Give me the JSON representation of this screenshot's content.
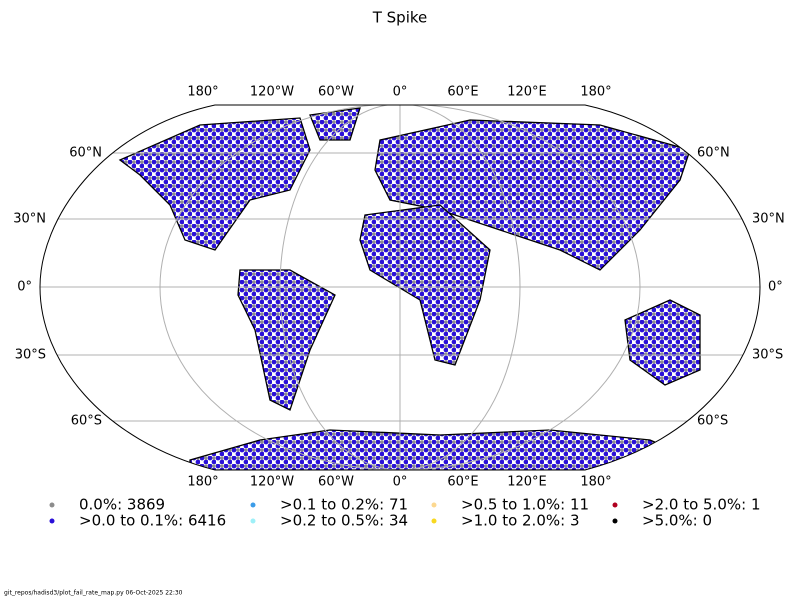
{
  "title": "T Spike",
  "lon_labels_top": [
    "180°",
    "120°W",
    "60°W",
    "0°",
    "60°E",
    "120°E",
    "180°"
  ],
  "lon_labels_bottom": [
    "180°",
    "120°W",
    "60°W",
    "0°",
    "60°E",
    "120°E",
    "180°"
  ],
  "lat_labels_left": [
    "60°N",
    "30°N",
    "0°",
    "30°S",
    "60°S"
  ],
  "lat_labels_right": [
    "60°N",
    "30°N",
    "0°",
    "30°S",
    "60°S"
  ],
  "legend": [
    {
      "label": "0.0%: 3869",
      "color": "#8c8c8c"
    },
    {
      "label": ">0.0 to 0.1%: 6416",
      "color": "#2a10d8"
    },
    {
      "label": ">0.1 to 0.2%: 71",
      "color": "#3c9ce8"
    },
    {
      "label": ">0.2 to 0.5%: 34",
      "color": "#9ef0f8"
    },
    {
      "label": ">0.5 to 1.0%: 11",
      "color": "#fcd890"
    },
    {
      "label": ">1.0 to 2.0%: 3",
      "color": "#f8d820"
    },
    {
      "label": ">2.0 to 5.0%: 1",
      "color": "#b00020"
    },
    {
      "label": ">5.0%: 0",
      "color": "#000000"
    }
  ],
  "footer": "git_repos/hadisd3/plot_fail_rate_map.py   06-Oct-2025 22:30"
}
